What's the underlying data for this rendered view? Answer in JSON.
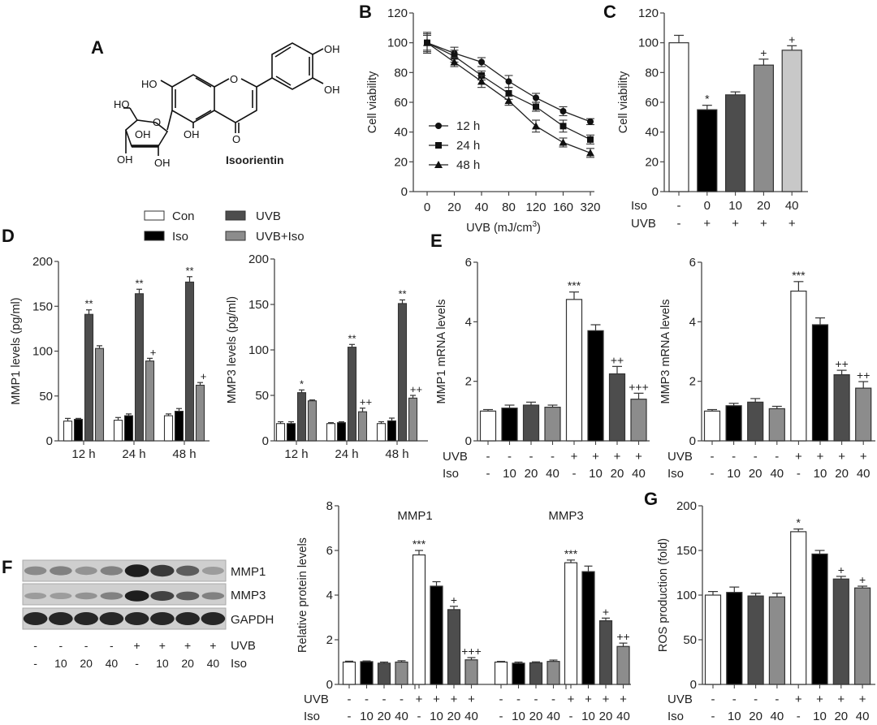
{
  "panel_letters": [
    "A",
    "B",
    "C",
    "D",
    "E",
    "F",
    "G"
  ],
  "panel_a": {
    "compound_name": "Isoorientin",
    "groups": [
      "OH",
      "OH",
      "HO",
      "HO",
      "OH",
      "OH",
      "OH",
      "OH",
      "O",
      "O",
      "O"
    ]
  },
  "legend_d": {
    "items": [
      {
        "label": "Con",
        "color": "#ffffff"
      },
      {
        "label": "Iso",
        "color": "#000000"
      },
      {
        "label": "UVB",
        "color": "#4d4d4d"
      },
      {
        "label": "UVB+Iso",
        "color": "#8c8c8c"
      }
    ]
  },
  "western_blot": {
    "rows": [
      "MMP1",
      "MMP3",
      "GAPDH"
    ],
    "intensities": {
      "MMP1": [
        0.35,
        0.4,
        0.3,
        0.4,
        0.95,
        0.8,
        0.6,
        0.25
      ],
      "MMP3": [
        0.25,
        0.25,
        0.3,
        0.4,
        0.95,
        0.75,
        0.6,
        0.4
      ],
      "GAPDH": [
        0.9,
        0.9,
        0.9,
        0.9,
        0.9,
        0.9,
        0.9,
        0.9
      ]
    },
    "uvb": [
      "-",
      "-",
      "-",
      "-",
      "+",
      "+",
      "+",
      "+"
    ],
    "iso": [
      "-",
      "10",
      "20",
      "40",
      "-",
      "10",
      "20",
      "40"
    ],
    "uvb_label": "UVB",
    "iso_label": "Iso"
  },
  "chart_data": [
    {
      "id": "B",
      "type": "line",
      "title": "",
      "xlabel": "UVB (mJ/cm",
      "xlabel_sup": "3",
      "xlabel_end": ")",
      "ylabel": "Cell viability",
      "ylim": [
        0,
        120
      ],
      "yticks": [
        0,
        20,
        40,
        60,
        80,
        100,
        120
      ],
      "categories": [
        "0",
        "20",
        "40",
        "80",
        "120",
        "160",
        "320"
      ],
      "legend_position": "bottom-left",
      "series": [
        {
          "name": "12 h",
          "marker": "circle",
          "values": [
            100,
            93,
            87,
            74,
            63,
            54,
            47
          ],
          "errors": [
            7,
            4,
            3,
            4,
            3,
            3,
            2
          ]
        },
        {
          "name": "24 h",
          "marker": "square",
          "values": [
            100,
            91,
            78,
            66,
            57,
            44,
            35
          ],
          "errors": [
            6,
            4,
            3,
            4,
            3,
            4,
            3
          ]
        },
        {
          "name": "48 h",
          "marker": "triangle",
          "values": [
            100,
            87,
            74,
            61,
            44,
            33,
            26
          ],
          "errors": [
            5,
            3,
            4,
            3,
            4,
            3,
            3
          ]
        }
      ]
    },
    {
      "id": "C",
      "type": "bar",
      "ylabel": "Cell viability",
      "ylim": [
        0,
        120
      ],
      "yticks": [
        0,
        20,
        40,
        60,
        80,
        100,
        120
      ],
      "row_labels": [
        "Iso",
        "UVB"
      ],
      "rows": [
        [
          "-",
          "0",
          "10",
          "20",
          "40"
        ],
        [
          "-",
          "+",
          "+",
          "+",
          "+"
        ]
      ],
      "values": [
        100,
        55,
        65,
        85,
        95
      ],
      "errors": [
        5,
        3,
        2,
        4,
        3
      ],
      "colors": [
        "#ffffff",
        "#000000",
        "#4d4d4d",
        "#8c8c8c",
        "#c8c8c8"
      ],
      "annotations": [
        "",
        "*",
        "",
        "+",
        "+"
      ]
    },
    {
      "id": "D1",
      "type": "bar",
      "ylabel": "MMP1 levels (pg/ml)",
      "ylim": [
        0,
        200
      ],
      "yticks": [
        0,
        50,
        100,
        150,
        200
      ],
      "categories": [
        "12 h",
        "24 h",
        "48 h"
      ],
      "series": [
        {
          "name": "Con",
          "values": [
            22,
            23,
            28
          ],
          "errors": [
            3,
            3,
            2
          ],
          "annotations": [
            "",
            "",
            ""
          ]
        },
        {
          "name": "Iso",
          "values": [
            24,
            28,
            33
          ],
          "errors": [
            1,
            2,
            3
          ],
          "annotations": [
            "",
            "",
            ""
          ]
        },
        {
          "name": "UVB",
          "values": [
            141,
            164,
            177
          ],
          "errors": [
            5,
            5,
            6
          ],
          "annotations": [
            "**",
            "**",
            "**"
          ]
        },
        {
          "name": "UVB+Iso",
          "values": [
            103,
            89,
            62
          ],
          "errors": [
            3,
            3,
            3
          ],
          "annotations": [
            "",
            "+",
            "+"
          ]
        }
      ]
    },
    {
      "id": "D2",
      "type": "bar",
      "ylabel": "MMP3 levels (pg/ml)",
      "ylim": [
        0,
        200
      ],
      "yticks": [
        0,
        50,
        100,
        150,
        200
      ],
      "categories": [
        "12 h",
        "24 h",
        "48 h"
      ],
      "series": [
        {
          "name": "Con",
          "values": [
            19,
            19,
            19
          ],
          "errors": [
            2,
            1,
            2
          ],
          "annotations": [
            "",
            "",
            ""
          ]
        },
        {
          "name": "Iso",
          "values": [
            19,
            20,
            22
          ],
          "errors": [
            2,
            1,
            3
          ],
          "annotations": [
            "",
            "",
            ""
          ]
        },
        {
          "name": "UVB",
          "values": [
            53,
            103,
            151
          ],
          "errors": [
            3,
            3,
            4
          ],
          "annotations": [
            "*",
            "**",
            "**"
          ]
        },
        {
          "name": "UVB+Iso",
          "values": [
            44,
            32,
            47
          ],
          "errors": [
            1,
            4,
            3
          ],
          "annotations": [
            "",
            "++",
            "++"
          ]
        }
      ]
    },
    {
      "id": "E1",
      "type": "bar",
      "ylabel": "MMP1 mRNA levels",
      "ylim": [
        0,
        6
      ],
      "yticks": [
        0,
        2,
        4,
        6
      ],
      "row_labels": [
        "UVB",
        "Iso"
      ],
      "rows": [
        [
          "-",
          "-",
          "-",
          "-",
          "+",
          "+",
          "+",
          "+"
        ],
        [
          "-",
          "10",
          "20",
          "40",
          "-",
          "10",
          "20",
          "40"
        ]
      ],
      "values": [
        1.0,
        1.1,
        1.2,
        1.13,
        4.75,
        3.7,
        2.25,
        1.4
      ],
      "errors": [
        0.05,
        0.1,
        0.1,
        0.07,
        0.25,
        0.2,
        0.25,
        0.2
      ],
      "colors": [
        "#ffffff",
        "#000000",
        "#4d4d4d",
        "#8c8c8c",
        "#ffffff",
        "#000000",
        "#4d4d4d",
        "#8c8c8c"
      ],
      "annotations": [
        "",
        "",
        "",
        "",
        "***",
        "",
        "++",
        "+++"
      ]
    },
    {
      "id": "E2",
      "type": "bar",
      "ylabel": "MMP3 mRNA levels",
      "ylim": [
        0,
        6
      ],
      "yticks": [
        0,
        2,
        4,
        6
      ],
      "row_labels": [
        "UVB",
        "Iso"
      ],
      "rows": [
        [
          "-",
          "-",
          "-",
          "-",
          "+",
          "+",
          "+",
          "+"
        ],
        [
          "-",
          "10",
          "20",
          "40",
          "-",
          "10",
          "20",
          "40"
        ]
      ],
      "values": [
        1.0,
        1.18,
        1.3,
        1.08,
        5.03,
        3.9,
        2.22,
        1.77
      ],
      "errors": [
        0.05,
        0.08,
        0.12,
        0.08,
        0.32,
        0.23,
        0.15,
        0.22
      ],
      "colors": [
        "#ffffff",
        "#000000",
        "#4d4d4d",
        "#8c8c8c",
        "#ffffff",
        "#000000",
        "#4d4d4d",
        "#8c8c8c"
      ],
      "annotations": [
        "",
        "",
        "",
        "",
        "***",
        "",
        "++",
        "++"
      ]
    },
    {
      "id": "F",
      "type": "bar",
      "ylabel": "Relative protein levels",
      "ylim": [
        0,
        8
      ],
      "yticks": [
        0,
        2,
        4,
        6,
        8
      ],
      "group_titles": [
        "MMP1",
        "MMP3"
      ],
      "row_labels": [
        "UVB",
        "Iso"
      ],
      "rows": [
        [
          "-",
          "-",
          "-",
          "-",
          "+",
          "+",
          "+",
          "+",
          "-",
          "-",
          "-",
          "-",
          "+",
          "+",
          "+",
          "+"
        ],
        [
          "-",
          "10",
          "20",
          "40",
          "-",
          "10",
          "20",
          "40",
          "-",
          "10",
          "20",
          "40",
          "-",
          "10",
          "20",
          "40"
        ]
      ],
      "values": [
        1.0,
        1.02,
        0.95,
        1.0,
        5.8,
        4.4,
        3.35,
        1.1,
        1.0,
        0.95,
        0.97,
        1.03,
        5.45,
        5.05,
        2.85,
        1.7
      ],
      "errors": [
        0.04,
        0.03,
        0.05,
        0.06,
        0.2,
        0.2,
        0.15,
        0.1,
        0.03,
        0.05,
        0.04,
        0.06,
        0.12,
        0.25,
        0.12,
        0.15
      ],
      "colors": [
        "#ffffff",
        "#000000",
        "#4d4d4d",
        "#8c8c8c",
        "#ffffff",
        "#000000",
        "#4d4d4d",
        "#8c8c8c",
        "#ffffff",
        "#000000",
        "#4d4d4d",
        "#8c8c8c",
        "#ffffff",
        "#000000",
        "#4d4d4d",
        "#8c8c8c"
      ],
      "annotations": [
        "",
        "",
        "",
        "",
        "***",
        "",
        "+",
        "+++",
        "",
        "",
        "",
        "",
        "***",
        "",
        "+",
        "++"
      ]
    },
    {
      "id": "G",
      "type": "bar",
      "ylabel": "ROS production (fold)",
      "ylim": [
        0,
        200
      ],
      "yticks": [
        0,
        50,
        100,
        150,
        200
      ],
      "row_labels": [
        "UVB",
        "Iso"
      ],
      "rows": [
        [
          "-",
          "-",
          "-",
          "-",
          "+",
          "+",
          "+",
          "+"
        ],
        [
          "-",
          "10",
          "20",
          "40",
          "-",
          "10",
          "20",
          "40"
        ]
      ],
      "values": [
        100,
        103,
        99,
        98,
        171,
        146,
        118,
        108
      ],
      "errors": [
        4,
        6,
        3,
        4,
        3,
        4,
        3,
        2
      ],
      "colors": [
        "#ffffff",
        "#000000",
        "#4d4d4d",
        "#8c8c8c",
        "#ffffff",
        "#000000",
        "#4d4d4d",
        "#8c8c8c"
      ],
      "annotations": [
        "",
        "",
        "",
        "",
        "*",
        "",
        "+",
        "+"
      ]
    }
  ]
}
